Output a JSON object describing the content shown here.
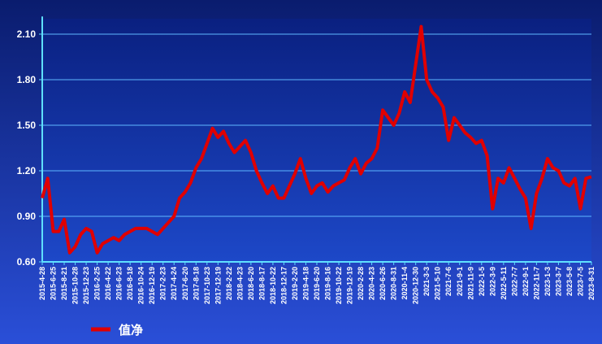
{
  "chart_data": {
    "type": "line",
    "categories": [
      "2015-4-28",
      null,
      "2015-6-25",
      null,
      "2015-8-21",
      null,
      "2015-10-28",
      null,
      "2015-12-23",
      null,
      "2016-2-25",
      null,
      "2016-4-22",
      null,
      "2016-6-23",
      null,
      "2016-8-18",
      null,
      "2016-10-24",
      null,
      "2016-12-19",
      null,
      "2017-2-23",
      null,
      "2017-4-24",
      null,
      "2017-6-20",
      null,
      "2017-8-18",
      null,
      "2017-10-23",
      null,
      "2017-12-19",
      null,
      "2018-2-22",
      null,
      "2018-4-23",
      null,
      "2018-6-20",
      null,
      "2018-8-17",
      null,
      "2018-10-22",
      null,
      "2018-12-17",
      null,
      "2019-2-20",
      null,
      "2019-4-18",
      null,
      "2019-6-20",
      null,
      "2019-8-16",
      null,
      "2019-10-22",
      null,
      "2019-12-19",
      null,
      "2020-2-28",
      null,
      "2020-4-23",
      null,
      "2020-6-26",
      null,
      "2020-8-31",
      null,
      "2020-11-4",
      null,
      "2020-12-30",
      null,
      "2021-3-3",
      null,
      "2021-5-10",
      null,
      "2021-7-6",
      null,
      "2021-9-1",
      null,
      "2021-11-9",
      null,
      "2022-1-5",
      null,
      "2022-3-9",
      null,
      "2022-5-11",
      null,
      "2022-7-7",
      null,
      "2022-9-1",
      null,
      "2022-11-7",
      null,
      "2023-1-3",
      null,
      "2023-3-7",
      null,
      "2023-5-8",
      null,
      "2023-7-5",
      null,
      "2023-8-31"
    ],
    "series": [
      {
        "name": "值净",
        "color": "#e00000",
        "values": [
          1.02,
          1.15,
          0.8,
          0.8,
          0.88,
          0.66,
          0.7,
          0.78,
          0.82,
          0.8,
          0.66,
          0.72,
          0.74,
          0.76,
          0.74,
          0.78,
          0.8,
          0.82,
          0.82,
          0.82,
          0.8,
          0.78,
          0.82,
          0.86,
          0.9,
          1.02,
          1.06,
          1.12,
          1.22,
          1.28,
          1.38,
          1.48,
          1.42,
          1.46,
          1.38,
          1.32,
          1.36,
          1.4,
          1.32,
          1.2,
          1.12,
          1.05,
          1.1,
          1.02,
          1.02,
          1.1,
          1.18,
          1.28,
          1.15,
          1.05,
          1.1,
          1.12,
          1.06,
          1.1,
          1.12,
          1.14,
          1.22,
          1.28,
          1.18,
          1.25,
          1.28,
          1.35,
          1.6,
          1.55,
          1.5,
          1.58,
          1.72,
          1.65,
          1.9,
          2.15,
          1.8,
          1.72,
          1.68,
          1.62,
          1.4,
          1.55,
          1.5,
          1.45,
          1.42,
          1.38,
          1.4,
          1.3,
          0.95,
          1.15,
          1.12,
          1.22,
          1.15,
          1.08,
          1.02,
          0.82,
          1.05,
          1.15,
          1.28,
          1.22,
          1.2,
          1.12,
          1.1,
          1.15,
          0.95,
          1.15,
          1.16
        ]
      }
    ],
    "ylim": [
      0.6,
      2.2
    ],
    "yticks": [
      {
        "value": 0.6,
        "label": "0.60"
      },
      {
        "value": 0.9,
        "label": "0.90"
      },
      {
        "value": 1.2,
        "label": "1.20"
      },
      {
        "value": 1.5,
        "label": "1.50"
      },
      {
        "value": 1.8,
        "label": "1.80"
      },
      {
        "value": 2.1,
        "label": "2.10"
      }
    ],
    "grid": true
  }
}
